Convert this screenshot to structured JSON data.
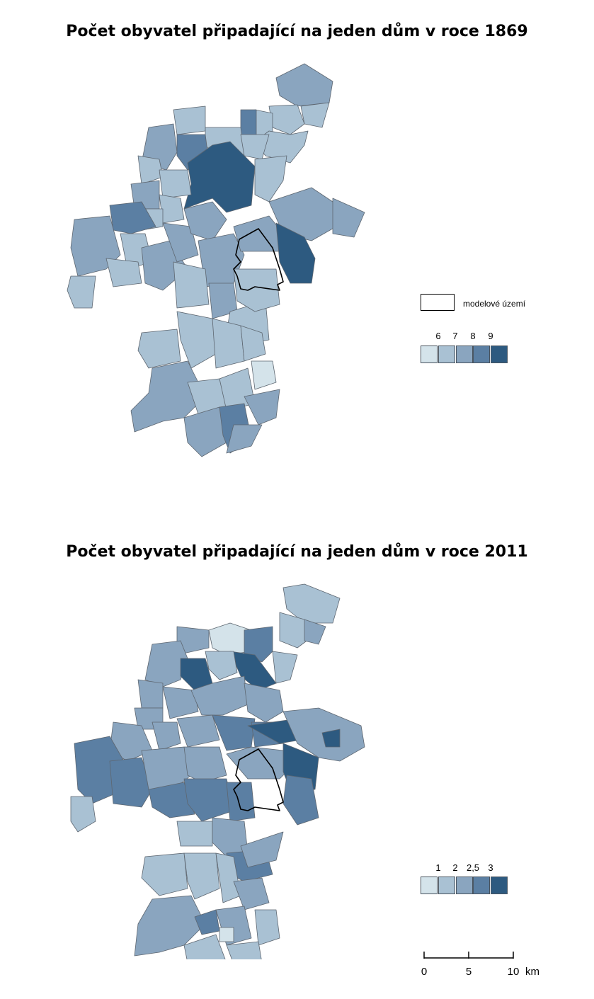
{
  "maps": [
    {
      "title": "Počet obyvatel připadající na jeden dům v roce 1869",
      "legend_ticks": [
        "6",
        "7",
        "8",
        "9"
      ]
    },
    {
      "title": "Počet obyvatel připadající na jeden dům v roce 2011",
      "legend_ticks": [
        "1",
        "2",
        "2,5",
        "3"
      ]
    }
  ],
  "model_area_label": "modelové území",
  "class_colors": [
    "#d4e3ea",
    "#a9c1d3",
    "#8aa5bf",
    "#5b7fa3",
    "#2d5a80"
  ],
  "scale_bar": {
    "labels": [
      "0",
      "5",
      "10"
    ],
    "unit": "km"
  }
}
